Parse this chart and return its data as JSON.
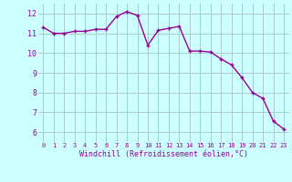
{
  "x": [
    0,
    1,
    2,
    3,
    4,
    5,
    6,
    7,
    8,
    9,
    10,
    11,
    12,
    13,
    14,
    15,
    16,
    17,
    18,
    19,
    20,
    21,
    22,
    23
  ],
  "y": [
    11.3,
    11.0,
    11.0,
    11.1,
    11.1,
    11.2,
    11.2,
    11.85,
    12.1,
    11.9,
    10.4,
    11.15,
    11.25,
    11.35,
    10.1,
    10.1,
    10.05,
    9.7,
    9.4,
    8.75,
    8.0,
    7.7,
    6.55,
    6.15
  ],
  "line_color": "#990099",
  "marker": "+",
  "marker_size": 3,
  "marker_lw": 1.0,
  "line_width": 1.0,
  "bg_color": "#ccffff",
  "grid_color": "#aacccc",
  "xlabel": "Windchill (Refroidissement éolien,°C)",
  "xlabel_color": "#990099",
  "ylabel_ticks": [
    6,
    7,
    8,
    9,
    10,
    11,
    12
  ],
  "xtick_labels": [
    "0",
    "1",
    "2",
    "3",
    "4",
    "5",
    "6",
    "7",
    "8",
    "9",
    "10",
    "11",
    "12",
    "13",
    "14",
    "15",
    "16",
    "17",
    "18",
    "19",
    "20",
    "21",
    "22",
    "23"
  ],
  "ylim": [
    5.5,
    12.5
  ],
  "xlim": [
    -0.5,
    23.5
  ]
}
